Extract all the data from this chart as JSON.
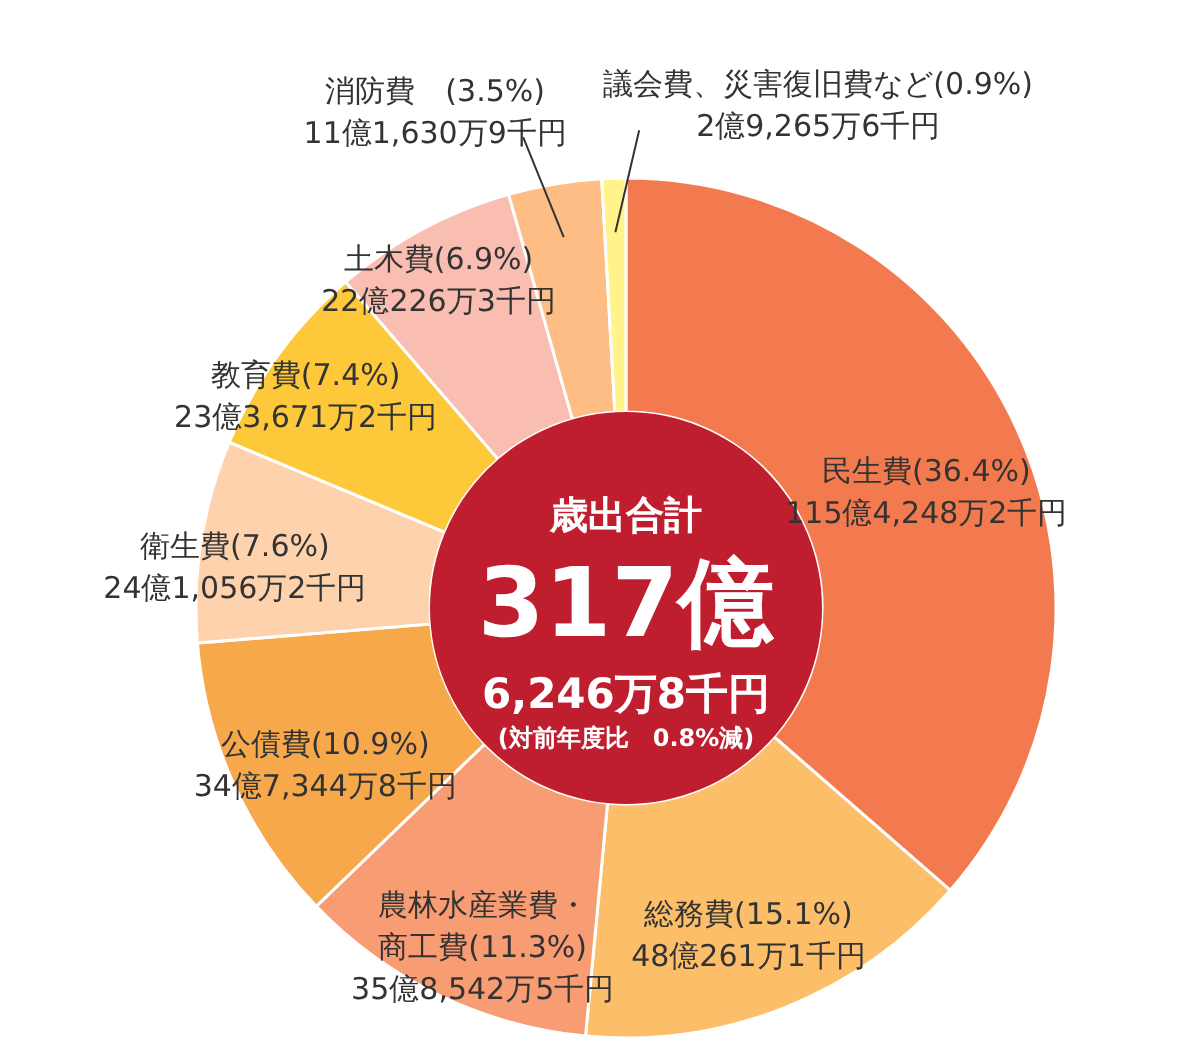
{
  "chart_data": {
    "type": "donut",
    "categories": [
      "民生費",
      "総務費",
      "農林水産業費・商工費",
      "公債費",
      "衛生費",
      "教育費",
      "土木費",
      "消防費",
      "議会費、災害復旧費など"
    ],
    "values": [
      36.4,
      15.1,
      11.3,
      10.9,
      7.6,
      7.4,
      6.9,
      3.5,
      0.9
    ],
    "colors": [
      "#f37a4e",
      "#fdbe6a",
      "#f89c74",
      "#f7a84a",
      "#fdd2ac",
      "#fdc93a",
      "#f9bdb2",
      "#fdbd84",
      "#fff38a"
    ],
    "value_labels": [
      "(36.4%)\n115億4,248万2千円",
      "(15.1%)\n48億261万1千円",
      "(11.3%)\n35億8,542万5千円",
      "(10.9%)\n34億7,344万8千円",
      "(7.6%)\n24億1,056万2千円",
      "(7.4%)\n23億3,671万2千円",
      "(6.9%)\n22億226万3千円",
      "　(3.5%)\n11億1,630万9千円",
      "(0.9%)\n2億9,265万6千円"
    ],
    "annotations": [
      "歳出合計",
      "317億",
      "6,246万8千円",
      "(対前年度比　0.8%減)"
    ]
  }
}
